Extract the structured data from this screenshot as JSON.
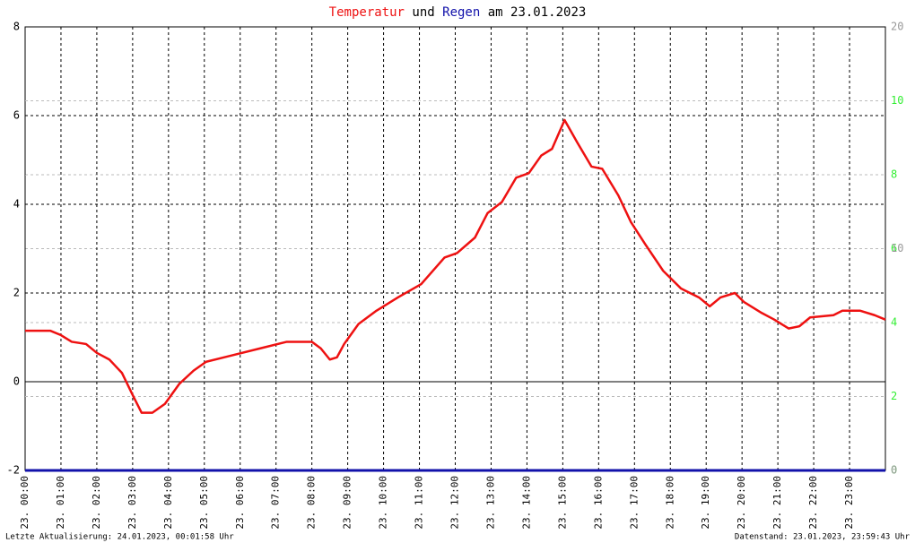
{
  "chart_data": {
    "type": "line",
    "title_connector": "und",
    "title_date": "am 23.01.2023",
    "footer_left": "Letzte Aktualisierung: 24.01.2023, 00:01:58 Uhr",
    "footer_right": "Datenstand: 23.01.2023, 23:59:43 Uhr",
    "xlim": [
      0,
      24
    ],
    "xticks": [
      {
        "value": 0,
        "label": "23. 00:00"
      },
      {
        "value": 1,
        "label": "23. 01:00"
      },
      {
        "value": 2,
        "label": "23. 02:00"
      },
      {
        "value": 3,
        "label": "23. 03:00"
      },
      {
        "value": 4,
        "label": "23. 04:00"
      },
      {
        "value": 5,
        "label": "23. 05:00"
      },
      {
        "value": 6,
        "label": "23. 06:00"
      },
      {
        "value": 7,
        "label": "23. 07:00"
      },
      {
        "value": 8,
        "label": "23. 08:00"
      },
      {
        "value": 9,
        "label": "23. 09:00"
      },
      {
        "value": 10,
        "label": "23. 10:00"
      },
      {
        "value": 11,
        "label": "23. 11:00"
      },
      {
        "value": 12,
        "label": "23. 12:00"
      },
      {
        "value": 13,
        "label": "23. 13:00"
      },
      {
        "value": 14,
        "label": "23. 14:00"
      },
      {
        "value": 15,
        "label": "23. 15:00"
      },
      {
        "value": 16,
        "label": "23. 16:00"
      },
      {
        "value": 17,
        "label": "23. 17:00"
      },
      {
        "value": 18,
        "label": "23. 18:00"
      },
      {
        "value": 19,
        "label": "23. 19:00"
      },
      {
        "value": 20,
        "label": "23. 20:00"
      },
      {
        "value": 21,
        "label": "23. 21:00"
      },
      {
        "value": 22,
        "label": "23. 22:00"
      },
      {
        "value": 23,
        "label": "23. 23:00"
      }
    ],
    "ylim": [
      -2,
      8
    ],
    "yticks": [
      -2,
      0,
      2,
      4,
      6,
      8
    ],
    "y2lim": [
      0,
      12
    ],
    "y2ticks": [
      0,
      2,
      4,
      6,
      8,
      10
    ],
    "y2_color": "#33ee33",
    "y3lim": [
      0,
      20
    ],
    "y3ticks": [
      0,
      10,
      20
    ],
    "y3_color": "#999999",
    "grid": true,
    "series": [
      {
        "name": "Temperatur",
        "color": "#ee1111",
        "x": [
          0,
          0.7,
          1,
          1.3,
          1.7,
          2,
          2.35,
          2.7,
          3,
          3.25,
          3.55,
          3.9,
          4.3,
          4.7,
          5.05,
          5.8,
          6.55,
          7.3,
          8,
          8.25,
          8.5,
          8.7,
          8.9,
          9.3,
          9.8,
          10.4,
          11.05,
          11.7,
          12.05,
          12.55,
          12.9,
          13.3,
          13.7,
          14.05,
          14.4,
          14.7,
          15.05,
          15.4,
          15.8,
          16.1,
          16.55,
          16.9,
          17.3,
          17.8,
          18.3,
          18.8,
          19.1,
          19.4,
          19.8,
          20.05,
          20.55,
          20.9,
          21.3,
          21.6,
          21.9,
          22.55,
          22.8,
          23.3,
          23.7,
          24
        ],
        "values": [
          1.15,
          1.15,
          1.05,
          0.9,
          0.85,
          0.65,
          0.5,
          0.2,
          -0.3,
          -0.7,
          -0.7,
          -0.5,
          -0.05,
          0.25,
          0.45,
          0.6,
          0.75,
          0.9,
          0.9,
          0.75,
          0.5,
          0.55,
          0.85,
          1.3,
          1.6,
          1.9,
          2.2,
          2.8,
          2.9,
          3.25,
          3.8,
          4.05,
          4.6,
          4.7,
          5.1,
          5.25,
          5.9,
          5.4,
          4.85,
          4.8,
          4.2,
          3.6,
          3.1,
          2.5,
          2.1,
          1.9,
          1.7,
          1.9,
          2.0,
          1.8,
          1.55,
          1.4,
          1.2,
          1.25,
          1.45,
          1.5,
          1.6,
          1.6,
          1.5,
          1.4
        ]
      },
      {
        "name": "Regen",
        "color": "#1111aa",
        "axis": "y2",
        "x": [
          0,
          24
        ],
        "values": [
          0,
          0
        ]
      }
    ]
  }
}
